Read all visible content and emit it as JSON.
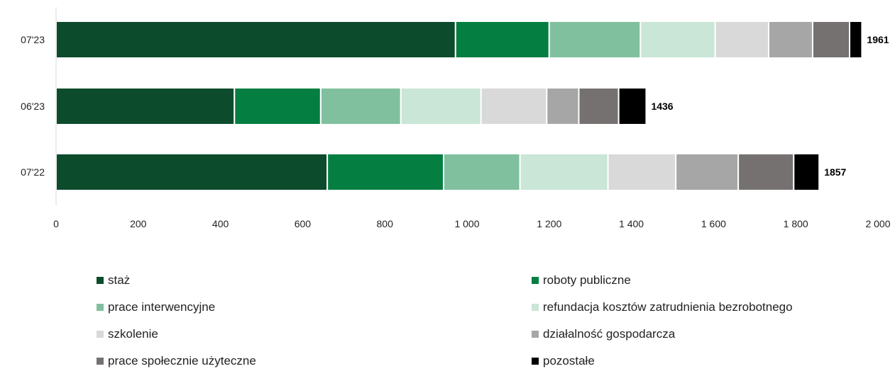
{
  "chart_data": {
    "type": "bar",
    "orientation": "horizontal",
    "stacked": true,
    "categories": [
      "07'23",
      "06'23",
      "07'22"
    ],
    "totals": [
      1961,
      1436,
      1857
    ],
    "xlim": [
      0,
      2000
    ],
    "xticks": [
      0,
      200,
      400,
      600,
      800,
      1000,
      1200,
      1400,
      1600,
      1800,
      2000
    ],
    "xtick_labels": [
      "0",
      "200",
      "400",
      "600",
      "800",
      "1 000",
      "1 200",
      "1 400",
      "1 600",
      "1 800",
      "2 000"
    ],
    "grid": false,
    "legend_position": "bottom",
    "series": [
      {
        "name": "staż",
        "color": "#0c4b2c",
        "values": [
          972,
          434,
          660
        ]
      },
      {
        "name": "roboty publiczne",
        "color": "#047f41",
        "values": [
          228,
          210,
          283
        ]
      },
      {
        "name": "prace interwencyjne",
        "color": "#80c09f",
        "values": [
          222,
          195,
          186
        ]
      },
      {
        "name": "refundacja kosztów zatrudnienia bezrobotnego",
        "color": "#c9e6d6",
        "values": [
          182,
          195,
          214
        ]
      },
      {
        "name": "szkolenie",
        "color": "#d9d9d9",
        "values": [
          130,
          160,
          165
        ]
      },
      {
        "name": "działalność gospodarcza",
        "color": "#a6a6a6",
        "values": [
          107,
          78,
          152
        ]
      },
      {
        "name": "prace społecznie użyteczne",
        "color": "#767171",
        "values": [
          90,
          97,
          135
        ]
      },
      {
        "name": "pozostałe",
        "color": "#000000",
        "values": [
          30,
          67,
          62
        ]
      }
    ]
  }
}
